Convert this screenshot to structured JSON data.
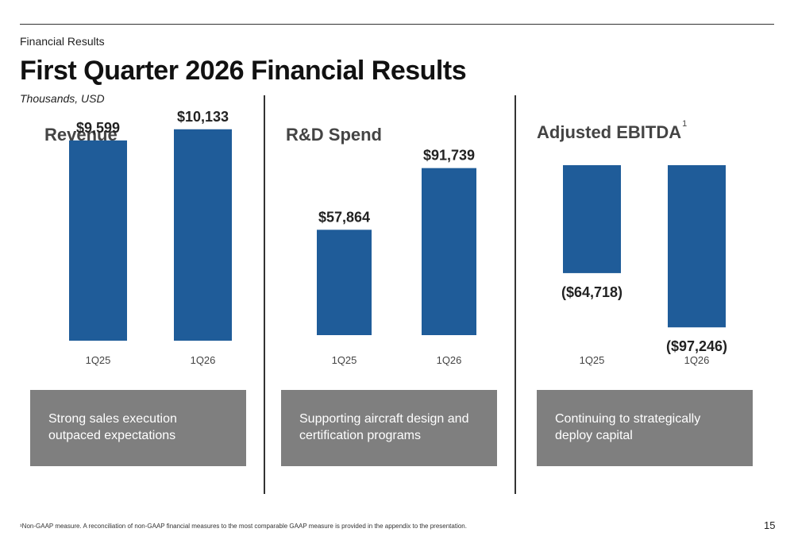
{
  "header": {
    "section_label": "Financial Results",
    "title": "First Quarter 2026 Financial Results",
    "units": "Thousands, USD"
  },
  "colors": {
    "bar": "#1f5c99",
    "note_box": "#7f7f7f",
    "text_dark": "#222222",
    "chart_title": "#444444"
  },
  "chart_data": [
    {
      "type": "bar",
      "title": "Revenue",
      "categories": [
        "1Q25",
        "1Q26"
      ],
      "values": [
        9599,
        10133
      ],
      "value_labels": [
        "$9,599",
        "$10,133"
      ],
      "ylim": [
        0,
        11000
      ],
      "grid": false
    },
    {
      "type": "bar",
      "title": "R&D Spend",
      "categories": [
        "1Q25",
        "1Q26"
      ],
      "values": [
        57864,
        91739
      ],
      "value_labels": [
        "$57,864",
        "$91,739"
      ],
      "ylim": [
        0,
        99000
      ],
      "grid": false
    },
    {
      "type": "bar",
      "title": "Adjusted EBITDA",
      "title_footnote_marker": "1",
      "categories": [
        "1Q25",
        "1Q26"
      ],
      "values": [
        -64718,
        -97246
      ],
      "value_labels": [
        "($64,718)",
        "($97,246)"
      ],
      "ylim": [
        -100000,
        0
      ],
      "grid": false
    }
  ],
  "notes": [
    "Strong sales execution outpaced expectations",
    "Supporting aircraft design and certification programs",
    "Continuing to strategically deploy capital"
  ],
  "footnote": "¹Non-GAAP measure. A reconciliation of non-GAAP financial measures to the most comparable GAAP measure is provided in the appendix to the presentation.",
  "page_number": "15"
}
